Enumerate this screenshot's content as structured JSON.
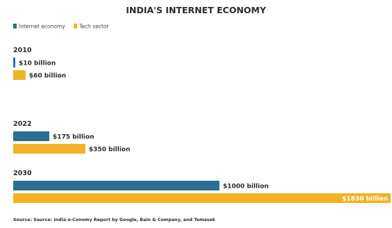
{
  "chart_data": {
    "type": "bar",
    "orientation": "horizontal",
    "title": "INDIA'S INTERNET ECONOMY",
    "source": "Source: Source: India e-Conomy Report by Google, Bain & Company, and Temasek",
    "categories": [
      "2010",
      "2022",
      "2030"
    ],
    "series": [
      {
        "name": "Internet economy",
        "color": "#2b6e93",
        "values": [
          10,
          175,
          1000
        ],
        "labels": [
          "$10 billion",
          "$175 billion",
          "$1000 billion"
        ]
      },
      {
        "name": "Tech sector",
        "color": "#f0b323",
        "values": [
          60,
          350,
          1830
        ],
        "labels": [
          "$60 billion",
          "$350 billion",
          "$1830 billion"
        ]
      }
    ],
    "unit": "billion USD",
    "xlim": [
      0,
      1830
    ],
    "legend_position": "top-left",
    "grid": false
  }
}
